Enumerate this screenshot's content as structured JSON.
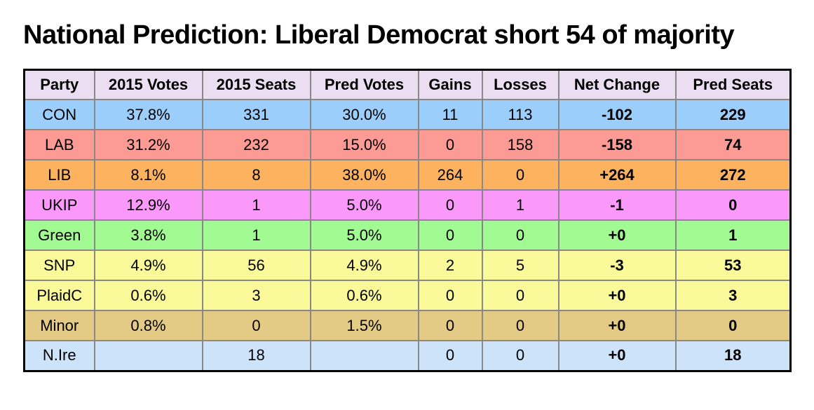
{
  "chart_data": {
    "type": "table",
    "title": "National Prediction: Liberal Democrat short 54 of majority",
    "columns": [
      "Party",
      "2015 Votes",
      "2015 Seats",
      "Pred Votes",
      "Gains",
      "Losses",
      "Net Change",
      "Pred Seats"
    ],
    "rows": [
      {
        "party": "CON",
        "color": "#9CCEFB",
        "cells": [
          "CON",
          "37.8%",
          "331",
          "30.0%",
          "11",
          "113",
          "-102",
          "229"
        ]
      },
      {
        "party": "LAB",
        "color": "#FC9B94",
        "cells": [
          "LAB",
          "31.2%",
          "232",
          "15.0%",
          "0",
          "158",
          "-158",
          "74"
        ]
      },
      {
        "party": "LIB",
        "color": "#FCB25F",
        "cells": [
          "LIB",
          "8.1%",
          "8",
          "38.0%",
          "264",
          "0",
          "+264",
          "272"
        ]
      },
      {
        "party": "UKIP",
        "color": "#FB99FB",
        "cells": [
          "UKIP",
          "12.9%",
          "1",
          "5.0%",
          "0",
          "1",
          "-1",
          "0"
        ]
      },
      {
        "party": "Green",
        "color": "#A1FA92",
        "cells": [
          "Green",
          "3.8%",
          "1",
          "5.0%",
          "0",
          "0",
          "+0",
          "1"
        ]
      },
      {
        "party": "SNP",
        "color": "#FAFA9B",
        "cells": [
          "SNP",
          "4.9%",
          "56",
          "4.9%",
          "2",
          "5",
          "-3",
          "53"
        ]
      },
      {
        "party": "PlaidC",
        "color": "#FAFA9B",
        "cells": [
          "PlaidC",
          "0.6%",
          "3",
          "0.6%",
          "0",
          "0",
          "+0",
          "3"
        ]
      },
      {
        "party": "Minor",
        "color": "#E3CA85",
        "cells": [
          "Minor",
          "0.8%",
          "0",
          "1.5%",
          "0",
          "0",
          "+0",
          "0"
        ]
      },
      {
        "party": "N.Ire",
        "color": "#CDE3FA",
        "cells": [
          "N.Ire",
          "",
          "18",
          "",
          "0",
          "0",
          "+0",
          "18"
        ]
      }
    ],
    "styles": {
      "header_bg": "#EBDEF2",
      "grid_color": "#888888",
      "outer_border_color": "#000000",
      "background": "#FFFFFF",
      "text_color": "#000000"
    },
    "layout": {
      "bold_columns": [
        "Net Change",
        "Pred Seats"
      ],
      "grid": true
    }
  }
}
